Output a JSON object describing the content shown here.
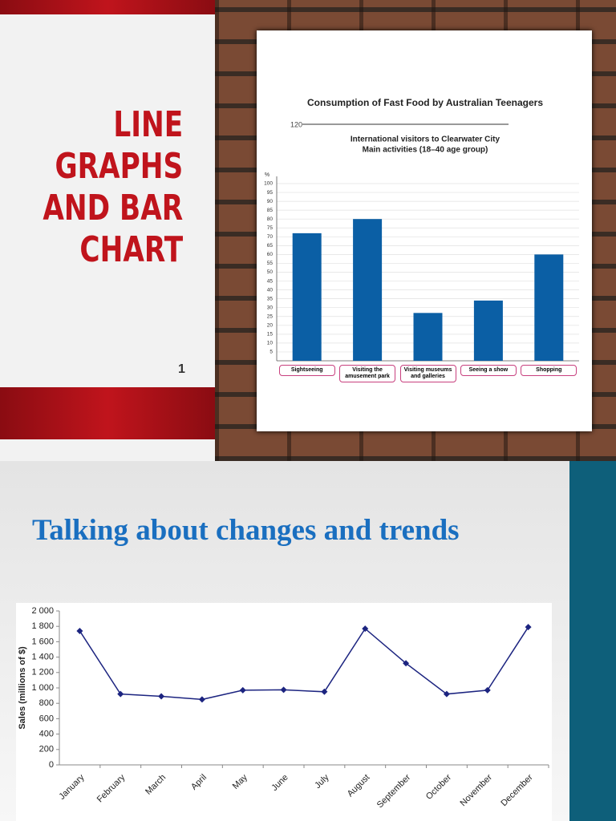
{
  "left_slide": {
    "title": [
      "LINE",
      "GRAPHS",
      "AND BAR",
      "CHART"
    ],
    "page_number": "1"
  },
  "bottom_slide": {
    "title": "Talking about changes and trends"
  },
  "chart_data": [
    {
      "type": "bar",
      "title": "Consumption of Fast Food by Australian Teenagers",
      "annotation": "120",
      "subtitle": [
        "International visitors to Clearwater City",
        "Main activities (18–40 age group)"
      ],
      "y_label": "%",
      "categories": [
        "Sightseeing",
        "Visiting the amusement park",
        "Visiting museums and galleries",
        "Seeing a show",
        "Shopping"
      ],
      "values": [
        72,
        80,
        27,
        34,
        60
      ],
      "color": "#0b5fa5",
      "ylim": [
        0,
        100
      ],
      "yticks": [
        5,
        10,
        15,
        20,
        25,
        30,
        35,
        40,
        45,
        50,
        55,
        60,
        65,
        70,
        75,
        80,
        85,
        90,
        95,
        100
      ],
      "grid": true
    },
    {
      "type": "line",
      "y_label": "Sales (millions of $)",
      "categories": [
        "January",
        "February",
        "March",
        "April",
        "May",
        "June",
        "July",
        "August",
        "September",
        "October",
        "November",
        "December"
      ],
      "values": [
        1740,
        920,
        890,
        850,
        970,
        975,
        950,
        1770,
        1320,
        920,
        970,
        1790
      ],
      "color": "#1c2480",
      "ylim": [
        0,
        2000
      ],
      "yticks": [
        0,
        200,
        400,
        600,
        800,
        {
          "value": 1000,
          "label": "1 000"
        },
        {
          "value": 1200,
          "label": "1 200"
        },
        {
          "value": 1400,
          "label": "1 400"
        },
        {
          "value": 1600,
          "label": "1 600"
        },
        {
          "value": 1800,
          "label": "1 800"
        },
        {
          "value": 2000,
          "label": "2 000"
        }
      ],
      "grid": false
    }
  ]
}
